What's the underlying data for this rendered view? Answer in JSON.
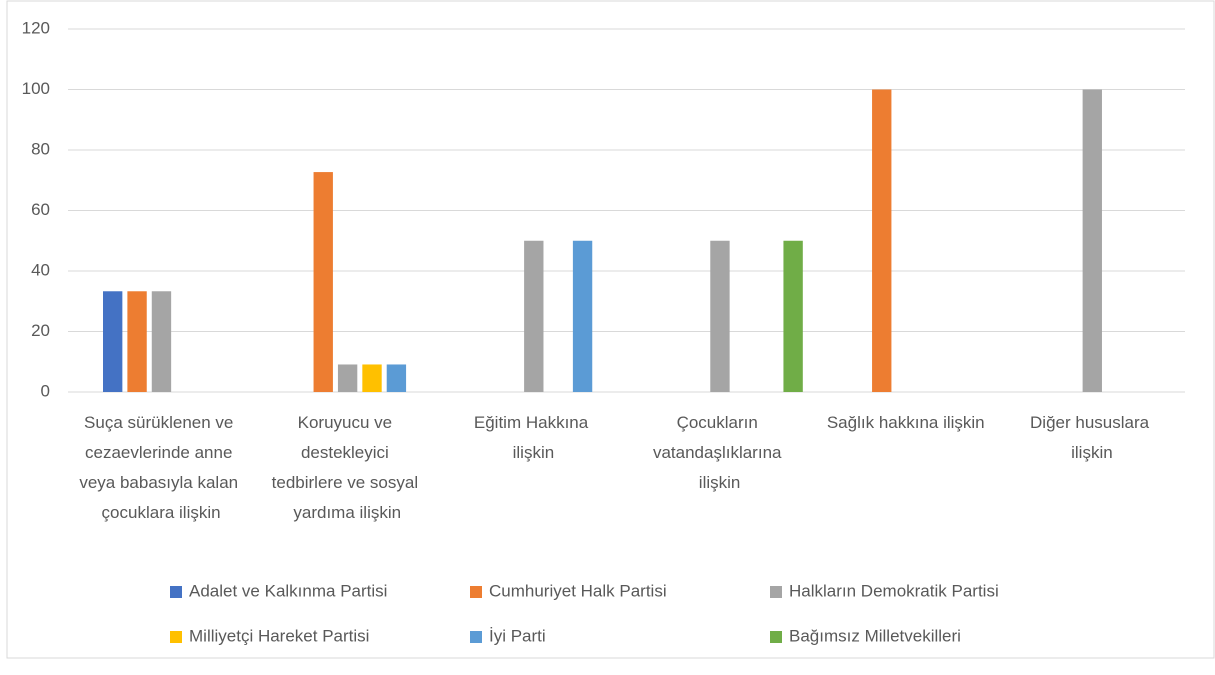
{
  "chart_data": {
    "type": "bar",
    "categories": [
      "Suça sürüklenen ve cezaevlerinde anne veya babasıyla kalan çocuklara ilişkin",
      "Koruyucu ve destekleyici tedbirlere ve sosyal yardıma ilişkin",
      "Eğitim Hakkına ilişkin",
      "Çocukların vatandaşlıklarına ilişkin",
      "Sağlık hakkına ilişkin",
      "Diğer hususlara ilişkin"
    ],
    "series": [
      {
        "name": "Adalet ve Kalkınma Partisi",
        "color": "#4472c4",
        "values": [
          33.3,
          0,
          0,
          0,
          0,
          0
        ]
      },
      {
        "name": "Cumhuriyet Halk Partisi",
        "color": "#ed7d31",
        "values": [
          33.3,
          72.7,
          0,
          0,
          100,
          0
        ]
      },
      {
        "name": "Halkların Demokratik Partisi",
        "color": "#a5a5a5",
        "values": [
          33.3,
          9.1,
          50,
          50,
          0,
          100
        ]
      },
      {
        "name": "Milliyetçi Hareket Partisi",
        "color": "#ffc000",
        "values": [
          0,
          9.1,
          0,
          0,
          0,
          0
        ]
      },
      {
        "name": "İyi Parti",
        "color": "#5b9bd5",
        "values": [
          0,
          9.1,
          50,
          0,
          0,
          0
        ]
      },
      {
        "name": "Bağımsız Milletvekilleri",
        "color": "#70ad47",
        "values": [
          0,
          0,
          0,
          50,
          0,
          0
        ]
      }
    ],
    "ylim": [
      0,
      120
    ],
    "yticks": [
      0,
      20,
      40,
      60,
      80,
      100,
      120
    ],
    "grid": true,
    "legend": "bottom"
  }
}
